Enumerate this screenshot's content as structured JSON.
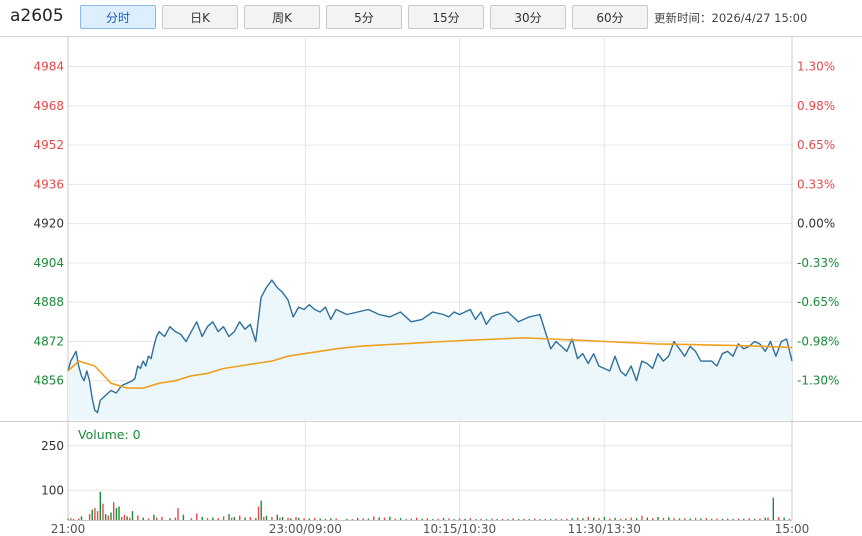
{
  "toolbar": {
    "symbol": "a2605",
    "tabs": [
      {
        "label": "分时",
        "active": true
      },
      {
        "label": "日K",
        "active": false
      },
      {
        "label": "周K",
        "active": false
      },
      {
        "label": "5分",
        "active": false
      },
      {
        "label": "15分",
        "active": false
      },
      {
        "label": "30分",
        "active": false
      },
      {
        "label": "60分",
        "active": false
      }
    ],
    "update_label": "更新时间：",
    "update_time": "2026/4/27 15:00"
  },
  "volume_label": "Volume: 0",
  "colors": {
    "price_line": "#2f6f99",
    "avg_line": "#f0a020",
    "area_fill": "#e9f6fb",
    "up": "#e04b4b",
    "down": "#1b8a3a",
    "neutral": "#333333",
    "grid": "#e6e6e6"
  },
  "chart_data": {
    "type": "line",
    "x_ticks": [
      "21:00",
      "23:00/09:00",
      "10:15/10:30",
      "11:30/13:30",
      "15:00"
    ],
    "price_axis": {
      "ticks": [
        4984,
        4968,
        4952,
        4936,
        4920,
        4904,
        4888,
        4872,
        4856
      ],
      "reference": 4920,
      "ylim": [
        4840,
        4994
      ]
    },
    "pct_axis": {
      "ticks": [
        "1.30%",
        "0.98%",
        "0.65%",
        "0.33%",
        "0.00%",
        "-0.33%",
        "-0.65%",
        "-0.98%",
        "-1.30%"
      ]
    },
    "series": [
      {
        "x": [
          0,
          1,
          2,
          3,
          4,
          5,
          6,
          7,
          8,
          9,
          10,
          11,
          12,
          14,
          16,
          18,
          20,
          22,
          24,
          25,
          26,
          27,
          28,
          29,
          30,
          31,
          32,
          33,
          34,
          36,
          38,
          40,
          42,
          44,
          46,
          48,
          50,
          52,
          54,
          56,
          58,
          60,
          62,
          64,
          66,
          68,
          70,
          72,
          74,
          76,
          78,
          80,
          82,
          84,
          86,
          88,
          90,
          92,
          94,
          96,
          98,
          100,
          104,
          108,
          112,
          116,
          120,
          124,
          128,
          132,
          136,
          140,
          142,
          144,
          146,
          148,
          150,
          152,
          154,
          156,
          158,
          160,
          164,
          168,
          172,
          176,
          180,
          182,
          184,
          186,
          188,
          190,
          192,
          194,
          196,
          198,
          200,
          202,
          204,
          206,
          208,
          210,
          212,
          214,
          216,
          218,
          220,
          222,
          224,
          226,
          228,
          230,
          232,
          234,
          236,
          238,
          240,
          242,
          244,
          246,
          248,
          250,
          252,
          254,
          256,
          258,
          260,
          262,
          264,
          266,
          268,
          270
        ],
        "values": [
          4860,
          4864,
          4866,
          4868,
          4862,
          4858,
          4856,
          4860,
          4856,
          4849,
          4844,
          4843,
          4848,
          4850,
          4852,
          4851,
          4854,
          4855,
          4856,
          4857,
          4862,
          4861,
          4864,
          4862,
          4866,
          4865,
          4870,
          4874,
          4876,
          4874,
          4878,
          4876,
          4875,
          4872,
          4876,
          4880,
          4874,
          4878,
          4880,
          4876,
          4878,
          4874,
          4876,
          4880,
          4877,
          4879,
          4872,
          4890,
          4894,
          4897,
          4894,
          4892,
          4889,
          4882,
          4886,
          4885,
          4887,
          4885,
          4884,
          4886,
          4881,
          4885,
          4883,
          4884,
          4885,
          4883,
          4882,
          4884,
          4880,
          4881,
          4884,
          4883,
          4882,
          4884,
          4883,
          4884,
          4885,
          4881,
          4884,
          4879,
          4882,
          4883,
          4884,
          4880,
          4882,
          4883,
          4869,
          4872,
          4870,
          4868,
          4873,
          4865,
          4867,
          4863,
          4867,
          4862,
          4861,
          4860,
          4866,
          4860,
          4858,
          4862,
          4856,
          4864,
          4863,
          4861,
          4867,
          4864,
          4866,
          4872,
          4869,
          4866,
          4870,
          4868,
          4864,
          4864,
          4864,
          4862,
          4867,
          4868,
          4866,
          4871,
          4869,
          4870,
          4872,
          4871,
          4868,
          4872,
          4866,
          4872,
          4873,
          4864
        ],
        "color": "price_line"
      },
      {
        "x": [
          0,
          4,
          10,
          16,
          22,
          28,
          34,
          40,
          46,
          52,
          58,
          64,
          70,
          76,
          82,
          88,
          94,
          100,
          108,
          116,
          124,
          132,
          140,
          150,
          160,
          170,
          180,
          190,
          200,
          210,
          220,
          230,
          240,
          250,
          260,
          270
        ],
        "values": [
          4860,
          4864,
          4862,
          4855,
          4853,
          4853,
          4855,
          4856,
          4858,
          4859,
          4861,
          4862,
          4863,
          4864,
          4866,
          4867,
          4868,
          4869,
          4870,
          4870.5,
          4871,
          4871.5,
          4872,
          4872.5,
          4873,
          4873.5,
          4873,
          4872.5,
          4872,
          4871.5,
          4871,
          4870.8,
          4870.5,
          4870.3,
          4870,
          4869.5
        ],
        "color": "avg_line"
      }
    ],
    "volume": {
      "ylim": [
        0,
        330
      ],
      "ticks": [
        250,
        100
      ],
      "bars": [
        [
          0,
          4,
          "d"
        ],
        [
          1,
          6,
          "u"
        ],
        [
          2,
          3,
          "d"
        ],
        [
          4,
          5,
          "u"
        ],
        [
          5,
          12,
          "d"
        ],
        [
          8,
          20,
          "u"
        ],
        [
          9,
          35,
          "d"
        ],
        [
          10,
          40,
          "u"
        ],
        [
          11,
          30,
          "u"
        ],
        [
          12,
          95,
          "d"
        ],
        [
          13,
          55,
          "u"
        ],
        [
          14,
          20,
          "d"
        ],
        [
          15,
          15,
          "u"
        ],
        [
          16,
          25,
          "d"
        ],
        [
          17,
          60,
          "u"
        ],
        [
          18,
          40,
          "d"
        ],
        [
          19,
          45,
          "d"
        ],
        [
          20,
          10,
          "u"
        ],
        [
          21,
          18,
          "u"
        ],
        [
          22,
          12,
          "d"
        ],
        [
          23,
          8,
          "u"
        ],
        [
          24,
          30,
          "d"
        ],
        [
          26,
          15,
          "u"
        ],
        [
          28,
          8,
          "d"
        ],
        [
          30,
          5,
          "u"
        ],
        [
          32,
          18,
          "d"
        ],
        [
          33,
          8,
          "u"
        ],
        [
          35,
          10,
          "u"
        ],
        [
          38,
          6,
          "d"
        ],
        [
          40,
          8,
          "u"
        ],
        [
          41,
          40,
          "u"
        ],
        [
          43,
          18,
          "d"
        ],
        [
          46,
          6,
          "u"
        ],
        [
          48,
          22,
          "u"
        ],
        [
          50,
          10,
          "d"
        ],
        [
          52,
          6,
          "u"
        ],
        [
          54,
          8,
          "d"
        ],
        [
          56,
          6,
          "u"
        ],
        [
          58,
          12,
          "u"
        ],
        [
          60,
          20,
          "d"
        ],
        [
          61,
          8,
          "u"
        ],
        [
          62,
          10,
          "d"
        ],
        [
          64,
          15,
          "u"
        ],
        [
          66,
          8,
          "d"
        ],
        [
          68,
          10,
          "u"
        ],
        [
          70,
          6,
          "d"
        ],
        [
          71,
          45,
          "u"
        ],
        [
          72,
          65,
          "d"
        ],
        [
          73,
          10,
          "u"
        ],
        [
          74,
          14,
          "d"
        ],
        [
          76,
          10,
          "u"
        ],
        [
          78,
          18,
          "d"
        ],
        [
          79,
          8,
          "u"
        ],
        [
          80,
          10,
          "d"
        ],
        [
          82,
          8,
          "u"
        ],
        [
          83,
          6,
          "d"
        ],
        [
          85,
          10,
          "u"
        ],
        [
          86,
          7,
          "d"
        ],
        [
          88,
          6,
          "u"
        ],
        [
          90,
          5,
          "d"
        ],
        [
          92,
          8,
          "u"
        ],
        [
          94,
          5,
          "d"
        ],
        [
          96,
          4,
          "u"
        ],
        [
          98,
          6,
          "d"
        ],
        [
          100,
          5,
          "u"
        ],
        [
          104,
          4,
          "d"
        ],
        [
          106,
          3,
          "u"
        ],
        [
          108,
          7,
          "d"
        ],
        [
          110,
          6,
          "u"
        ],
        [
          112,
          5,
          "d"
        ],
        [
          114,
          12,
          "u"
        ],
        [
          116,
          9,
          "d"
        ],
        [
          118,
          8,
          "u"
        ],
        [
          120,
          11,
          "d"
        ],
        [
          122,
          4,
          "u"
        ],
        [
          124,
          6,
          "d"
        ],
        [
          126,
          3,
          "u"
        ],
        [
          128,
          4,
          "d"
        ],
        [
          130,
          8,
          "u"
        ],
        [
          132,
          4,
          "d"
        ],
        [
          134,
          6,
          "u"
        ],
        [
          136,
          3,
          "d"
        ],
        [
          138,
          4,
          "u"
        ],
        [
          140,
          7,
          "d"
        ],
        [
          142,
          5,
          "u"
        ],
        [
          144,
          3,
          "d"
        ],
        [
          146,
          5,
          "u"
        ],
        [
          148,
          4,
          "d"
        ],
        [
          150,
          6,
          "u"
        ],
        [
          152,
          3,
          "d"
        ],
        [
          154,
          4,
          "u"
        ],
        [
          156,
          3,
          "d"
        ],
        [
          158,
          5,
          "u"
        ],
        [
          160,
          3,
          "d"
        ],
        [
          162,
          4,
          "u"
        ],
        [
          164,
          3,
          "d"
        ],
        [
          166,
          6,
          "u"
        ],
        [
          168,
          3,
          "d"
        ],
        [
          170,
          4,
          "u"
        ],
        [
          172,
          3,
          "d"
        ],
        [
          174,
          5,
          "u"
        ],
        [
          176,
          3,
          "d"
        ],
        [
          178,
          4,
          "u"
        ],
        [
          180,
          3,
          "d"
        ],
        [
          182,
          4,
          "u"
        ],
        [
          184,
          3,
          "d"
        ],
        [
          186,
          4,
          "u"
        ],
        [
          188,
          6,
          "d"
        ],
        [
          190,
          8,
          "u"
        ],
        [
          192,
          6,
          "d"
        ],
        [
          194,
          10,
          "u"
        ],
        [
          196,
          8,
          "d"
        ],
        [
          198,
          6,
          "u"
        ],
        [
          200,
          10,
          "d"
        ],
        [
          202,
          5,
          "u"
        ],
        [
          204,
          7,
          "d"
        ],
        [
          206,
          4,
          "u"
        ],
        [
          208,
          5,
          "d"
        ],
        [
          210,
          8,
          "u"
        ],
        [
          212,
          6,
          "d"
        ],
        [
          214,
          14,
          "u"
        ],
        [
          216,
          8,
          "d"
        ],
        [
          218,
          6,
          "u"
        ],
        [
          220,
          10,
          "d"
        ],
        [
          222,
          7,
          "u"
        ],
        [
          224,
          9,
          "d"
        ],
        [
          226,
          6,
          "u"
        ],
        [
          228,
          5,
          "d"
        ],
        [
          230,
          6,
          "u"
        ],
        [
          232,
          5,
          "d"
        ],
        [
          234,
          7,
          "u"
        ],
        [
          236,
          5,
          "d"
        ],
        [
          238,
          6,
          "u"
        ],
        [
          240,
          4,
          "d"
        ],
        [
          242,
          5,
          "u"
        ],
        [
          244,
          4,
          "d"
        ],
        [
          246,
          5,
          "u"
        ],
        [
          248,
          4,
          "d"
        ],
        [
          250,
          5,
          "u"
        ],
        [
          252,
          4,
          "d"
        ],
        [
          254,
          6,
          "u"
        ],
        [
          256,
          4,
          "d"
        ],
        [
          258,
          5,
          "u"
        ],
        [
          260,
          8,
          "d"
        ],
        [
          261,
          8,
          "u"
        ],
        [
          263,
          75,
          "d"
        ],
        [
          265,
          10,
          "u"
        ],
        [
          267,
          8,
          "d"
        ],
        [
          269,
          4,
          "u"
        ]
      ]
    }
  }
}
